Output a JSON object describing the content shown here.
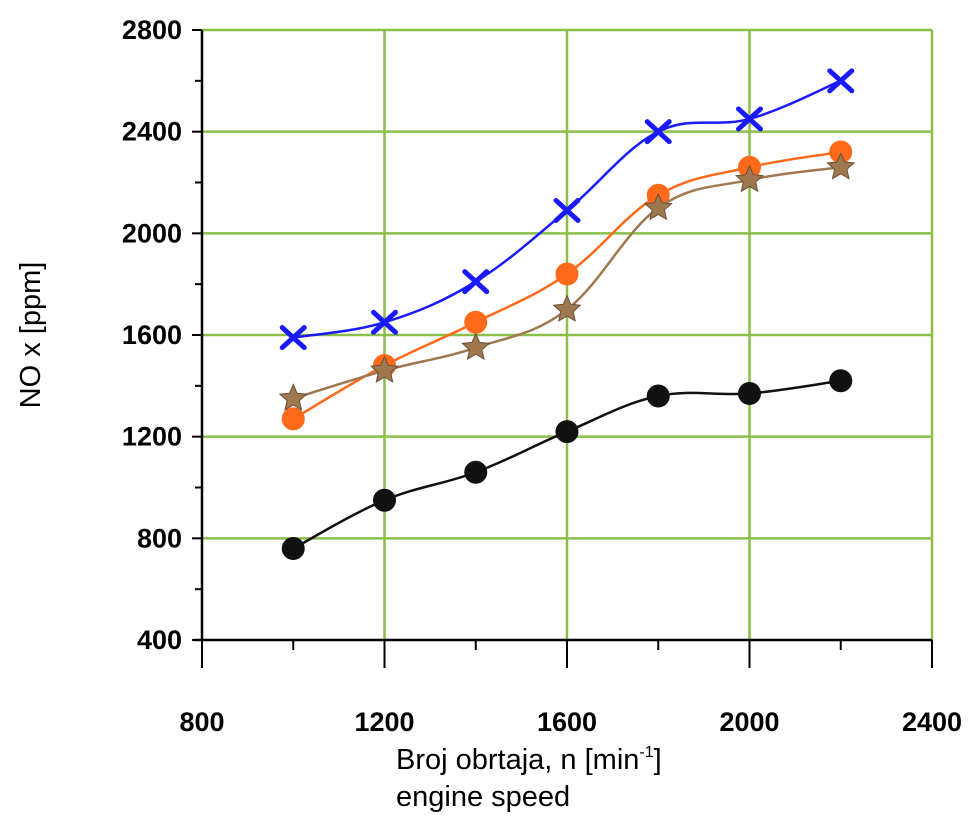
{
  "chart_data": {
    "type": "line",
    "title": "",
    "ylabel": "NO x [ppm]",
    "xlabel_line1": "Broj obrtaja, n [min",
    "xlabel_sup": "-1",
    "xlabel_line2": "engine speed",
    "xlim": [
      800,
      2400
    ],
    "ylim": [
      400,
      2800
    ],
    "xticks": [
      800,
      1200,
      1600,
      2000,
      2400
    ],
    "yticks": [
      400,
      800,
      1200,
      1600,
      2000,
      2400,
      2800
    ],
    "grid": true,
    "legend": "none",
    "x": [
      1000,
      1200,
      1400,
      1600,
      1800,
      2000,
      2200
    ],
    "series": [
      {
        "color": "#1a1aff",
        "marker": "x",
        "values": [
          1590,
          1650,
          1810,
          2090,
          2400,
          2450,
          2600
        ]
      },
      {
        "color": "#ff6a1a",
        "marker": "circle",
        "values": [
          1270,
          1480,
          1650,
          1840,
          2150,
          2260,
          2320
        ]
      },
      {
        "color": "#a07850",
        "marker": "star",
        "values": [
          1350,
          1460,
          1550,
          1700,
          2100,
          2210,
          2260
        ]
      },
      {
        "color": "#111111",
        "marker": "circle",
        "values": [
          760,
          950,
          1060,
          1220,
          1360,
          1370,
          1420
        ]
      }
    ],
    "grid_color": "#8cbf4a"
  }
}
